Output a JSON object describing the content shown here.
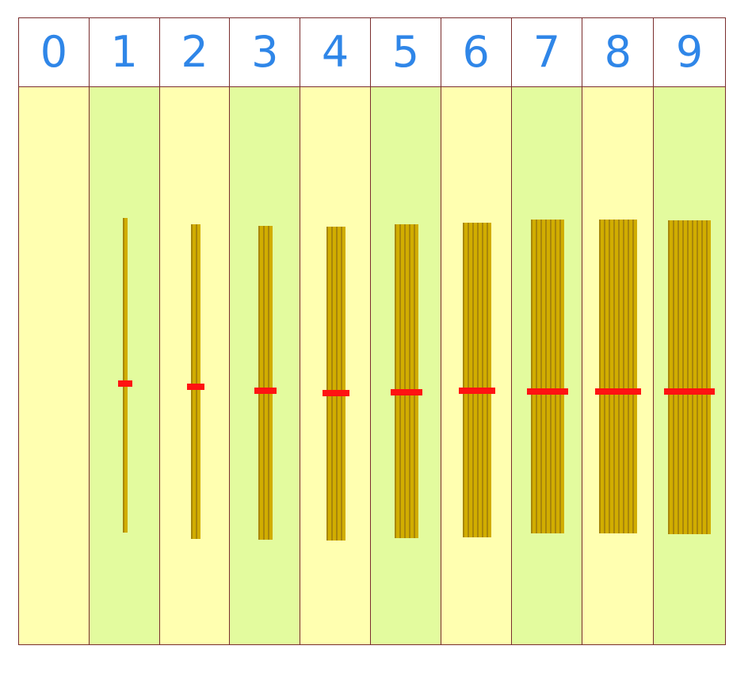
{
  "colors": {
    "digit": "#2f86e8",
    "panel_light": "#ffffb0",
    "panel_green": "#e3fb9e",
    "stick": "#c8a500",
    "band": "#ff1212",
    "border": "#7a2e2e"
  },
  "columns": [
    {
      "digit": "0",
      "sticks": 0,
      "panel": "light"
    },
    {
      "digit": "1",
      "sticks": 1,
      "panel": "green"
    },
    {
      "digit": "2",
      "sticks": 2,
      "panel": "light"
    },
    {
      "digit": "3",
      "sticks": 3,
      "panel": "green"
    },
    {
      "digit": "4",
      "sticks": 4,
      "panel": "light"
    },
    {
      "digit": "5",
      "sticks": 5,
      "panel": "green"
    },
    {
      "digit": "6",
      "sticks": 6,
      "panel": "light"
    },
    {
      "digit": "7",
      "sticks": 7,
      "panel": "green"
    },
    {
      "digit": "8",
      "sticks": 8,
      "panel": "light"
    },
    {
      "digit": "9",
      "sticks": 9,
      "panel": "green"
    }
  ]
}
